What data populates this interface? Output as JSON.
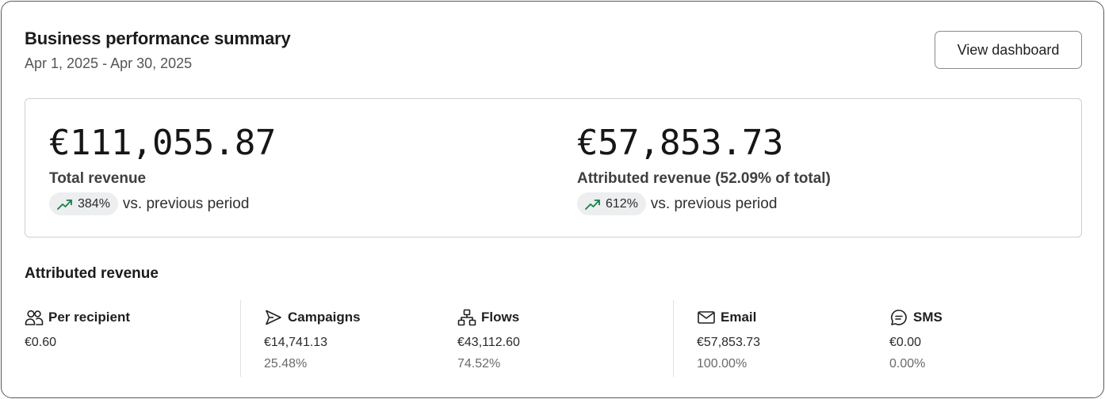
{
  "header": {
    "title": "Business performance summary",
    "date_range": "Apr 1, 2025 - Apr 30, 2025",
    "view_button_label": "View dashboard"
  },
  "summary": {
    "total": {
      "amount": "€111,055.87",
      "label": "Total revenue",
      "change_percent": "384%",
      "change_suffix": "vs. previous period",
      "trend_icon": "trend-up-icon"
    },
    "attributed": {
      "amount": "€57,853.73",
      "label": "Attributed revenue (52.09% of total)",
      "change_percent": "612%",
      "change_suffix": "vs. previous period",
      "trend_icon": "trend-up-icon"
    }
  },
  "breakdown": {
    "title": "Attributed revenue",
    "columns": [
      {
        "icon": "users-icon",
        "label": "Per recipient",
        "value": "€0.60",
        "percent": ""
      },
      {
        "icon": "send-icon",
        "label": "Campaigns",
        "value": "€14,741.13",
        "percent": "25.48%"
      },
      {
        "icon": "flows-icon",
        "label": "Flows",
        "value": "€43,112.60",
        "percent": "74.52%"
      },
      {
        "icon": "mail-icon",
        "label": "Email",
        "value": "€57,853.73",
        "percent": "100.00%"
      },
      {
        "icon": "chat-icon",
        "label": "SMS",
        "value": "€0.00",
        "percent": "0.00%"
      }
    ]
  },
  "colors": {
    "trend_up": "#1a7f46",
    "border": "#cfcfcf",
    "pill_bg": "#eceeef"
  }
}
